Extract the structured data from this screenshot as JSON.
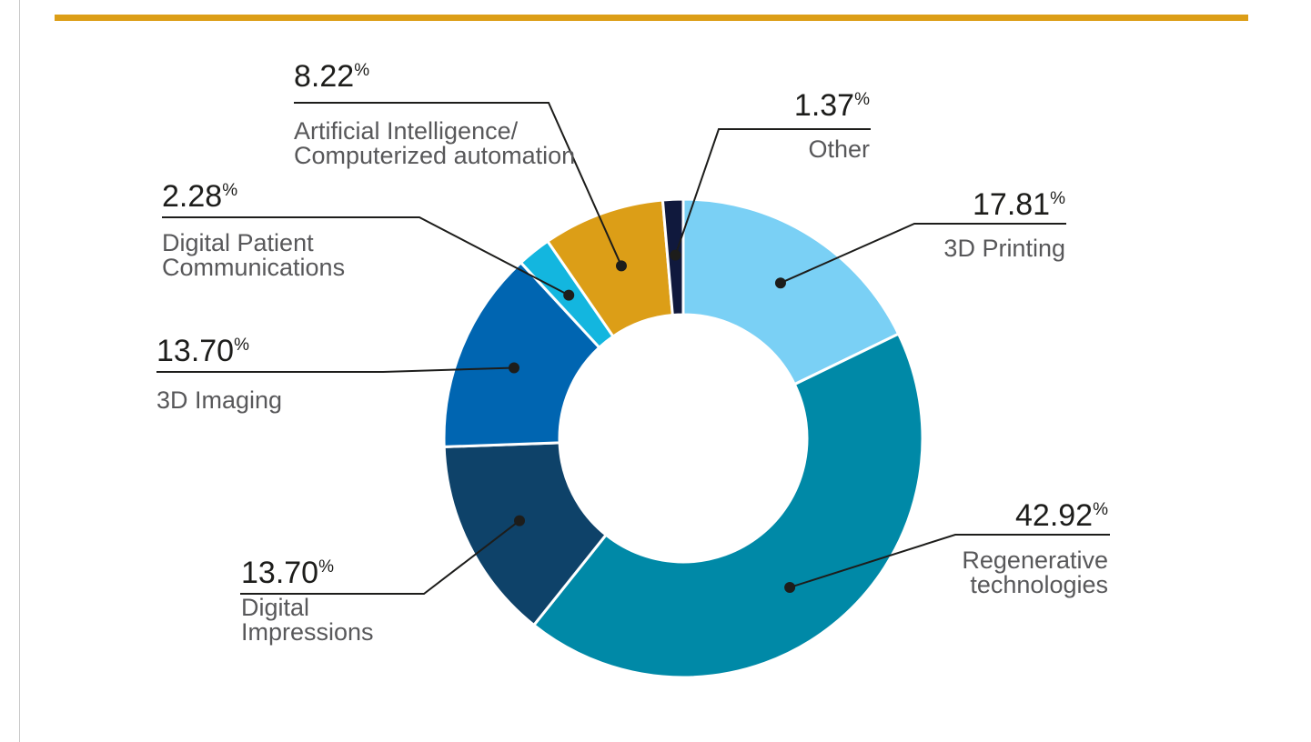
{
  "chart_data": {
    "type": "pie",
    "variant": "donut",
    "title": "",
    "percent_symbol": "%",
    "slices": [
      {
        "name": "3D Printing",
        "label_lines": [
          "3D Printing"
        ],
        "value_text": "17.81",
        "value": 17.81,
        "color": "#7ad0f5"
      },
      {
        "name": "Regenerative technologies",
        "label_lines": [
          "Regenerative",
          "technologies"
        ],
        "value_text": "42.92",
        "value": 42.92,
        "color": "#0089a7"
      },
      {
        "name": "Digital Impressions",
        "label_lines": [
          "Digital",
          "Impressions"
        ],
        "value_text": "13.70",
        "value": 13.7,
        "color": "#0e4269"
      },
      {
        "name": "3D Imaging",
        "label_lines": [
          "3D Imaging"
        ],
        "value_text": "13.70",
        "value": 13.7,
        "color": "#0065b1"
      },
      {
        "name": "Digital Patient Communications",
        "label_lines": [
          "Digital Patient",
          "Communications"
        ],
        "value_text": "2.28",
        "value": 2.28,
        "color": "#13b6df"
      },
      {
        "name": "Artificial Intelligence/Computerized automation",
        "label_lines": [
          "Artificial Intelligence/",
          "Computerized automation"
        ],
        "value_text": "8.22",
        "value": 8.22,
        "color": "#dc9e17"
      },
      {
        "name": "Other",
        "label_lines": [
          "Other"
        ],
        "value_text": "1.37",
        "value": 1.37,
        "color": "#10193d"
      }
    ]
  },
  "colors": {
    "accent_rule": "#dc9e17",
    "leader_line": "#1d1d1b",
    "value_text": "#1d1d1b",
    "label_text": "#58585a"
  }
}
